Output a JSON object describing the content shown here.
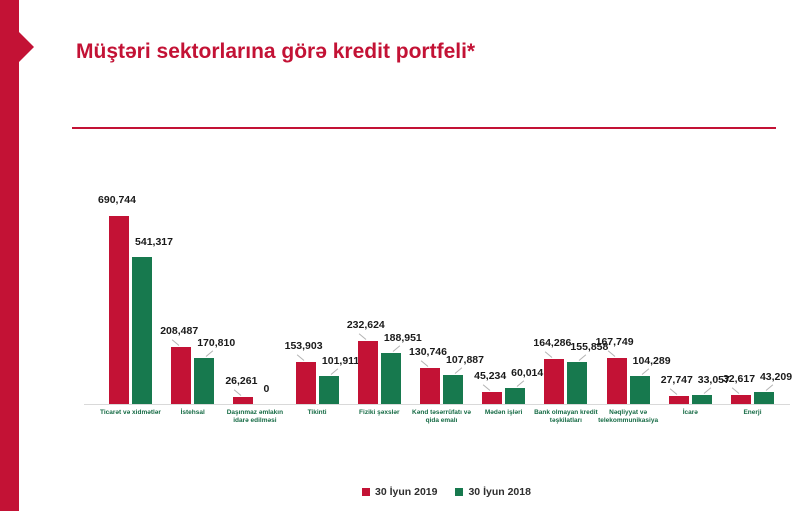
{
  "page": {
    "title": "Müştəri sektorlarına görə kredit portfeli*",
    "accent_color": "#C31235"
  },
  "chart_data": {
    "type": "bar",
    "title": "Müştəri sektorlarına görə kredit portfeli*",
    "categories": [
      "Ticarət və xidmətlər",
      "İstehsal",
      "Daşınmaz əmlakın idarə edilməsi",
      "Tikinti",
      "Fiziki şəxslər",
      "Kənd təsərrüfatı və qida emalı",
      "Mədən işləri",
      "Bank olmayan kredit təşkilatları",
      "Nəqliyyat və telekommunikasiya",
      "İcarə",
      "Enerji"
    ],
    "series": [
      {
        "name": "30 İyun 2019",
        "color": "#C31235",
        "values": [
          690744,
          208487,
          26261,
          153903,
          232624,
          130746,
          45234,
          164286,
          167749,
          27747,
          32617
        ]
      },
      {
        "name": "30 İyun 2018",
        "color": "#17794E",
        "values": [
          541317,
          170810,
          0,
          101911,
          188951,
          107887,
          60014,
          155858,
          104289,
          33057,
          43209
        ]
      }
    ],
    "ylim": [
      0,
      690744
    ],
    "grid": false,
    "legend_position": "bottom",
    "value_label_format": "thousands-comma",
    "category_label_color": "#166B45",
    "axis_line_color": "#D9D9D9"
  }
}
